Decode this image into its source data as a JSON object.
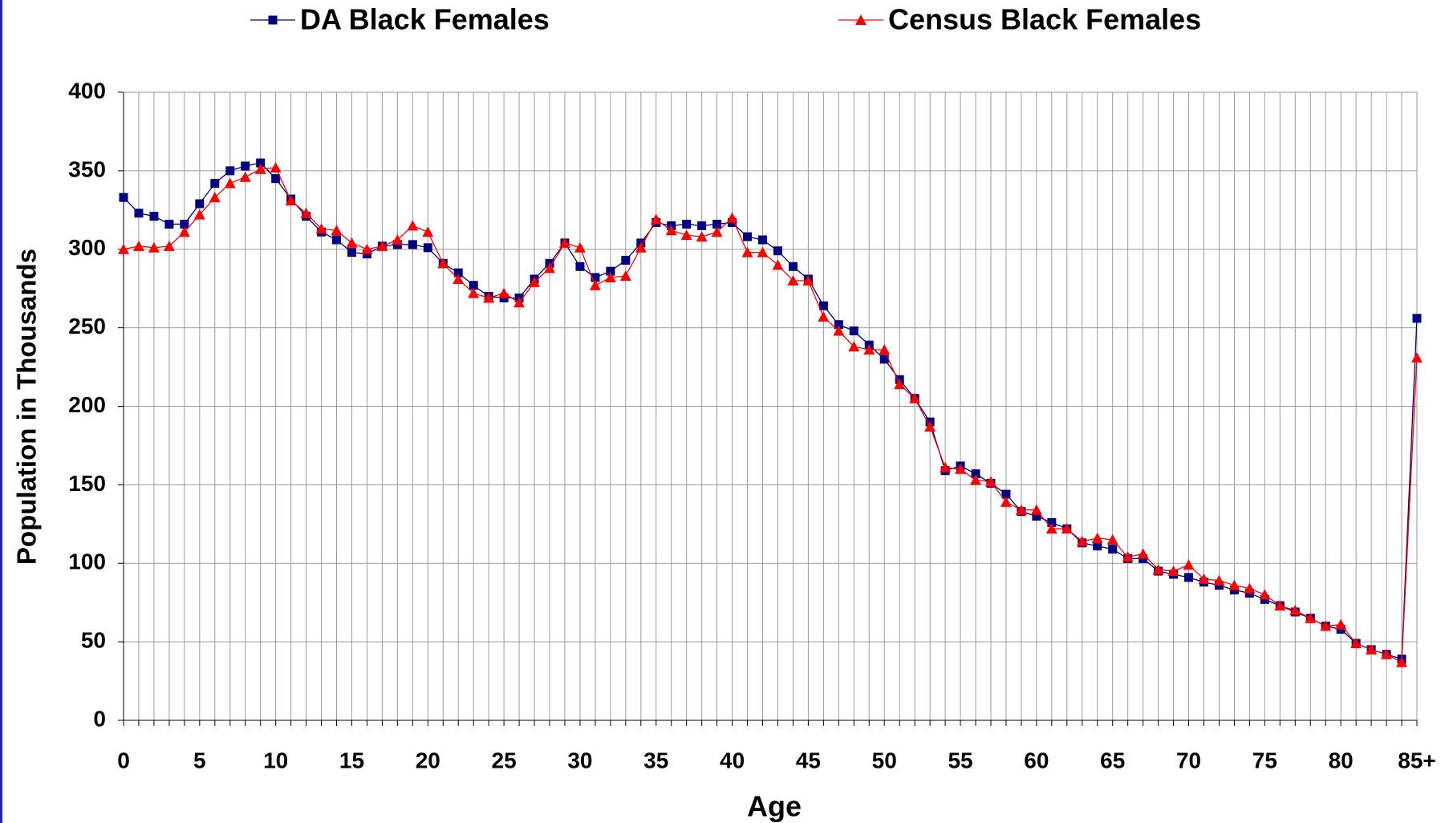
{
  "chart_data": {
    "type": "line",
    "x_label": "Age",
    "y_label": "Population in Thousands",
    "categories": [
      "0",
      null,
      null,
      null,
      null,
      "5",
      null,
      null,
      null,
      null,
      "10",
      null,
      null,
      null,
      null,
      "15",
      null,
      null,
      null,
      null,
      "20",
      null,
      null,
      null,
      null,
      "25",
      null,
      null,
      null,
      null,
      "30",
      null,
      null,
      null,
      null,
      "35",
      null,
      null,
      null,
      null,
      "40",
      null,
      null,
      null,
      null,
      "45",
      null,
      null,
      null,
      null,
      "50",
      null,
      null,
      null,
      null,
      "55",
      null,
      null,
      null,
      null,
      "60",
      null,
      null,
      null,
      null,
      "65",
      null,
      null,
      null,
      null,
      "70",
      null,
      null,
      null,
      null,
      "75",
      null,
      null,
      null,
      null,
      "80",
      null,
      null,
      null,
      null,
      "85+"
    ],
    "series": [
      {
        "name": "DA Black Females",
        "color": "#000080",
        "marker": "square",
        "values": [
          333,
          323,
          321,
          316,
          316,
          329,
          342,
          350,
          353,
          355,
          345,
          332,
          321,
          311,
          306,
          298,
          297,
          302,
          303,
          303,
          301,
          291,
          285,
          277,
          270,
          269,
          269,
          281,
          291,
          304,
          289,
          282,
          286,
          293,
          304,
          317,
          315,
          316,
          315,
          316,
          317,
          308,
          306,
          299,
          289,
          281,
          264,
          252,
          248,
          239,
          230,
          217,
          205,
          190,
          159,
          162,
          157,
          151,
          144,
          133,
          130,
          126,
          122,
          113,
          111,
          109,
          103,
          103,
          95,
          93,
          91,
          88,
          86,
          83,
          81,
          77,
          73,
          69,
          65,
          60,
          58,
          49,
          45,
          42,
          39,
          256
        ]
      },
      {
        "name": "Census Black Females",
        "color": "#ff0000",
        "marker": "triangle",
        "values": [
          300,
          302,
          301,
          302,
          311,
          322,
          333,
          342,
          346,
          351,
          352,
          331,
          323,
          313,
          312,
          304,
          300,
          302,
          306,
          315,
          311,
          291,
          281,
          272,
          269,
          272,
          266,
          279,
          288,
          304,
          301,
          277,
          282,
          283,
          301,
          319,
          312,
          309,
          308,
          311,
          320,
          298,
          298,
          290,
          280,
          280,
          257,
          248,
          238,
          236,
          236,
          214,
          205,
          187,
          161,
          160,
          153,
          152,
          139,
          134,
          134,
          122,
          122,
          114,
          116,
          115,
          104,
          106,
          96,
          95,
          99,
          90,
          89,
          86,
          84,
          80,
          73,
          70,
          65,
          60,
          61,
          49,
          45,
          42,
          37,
          231
        ]
      }
    ],
    "ylim": [
      0,
      400
    ],
    "yticks": [
      0,
      50,
      100,
      150,
      200,
      250,
      300,
      350,
      400
    ],
    "grid": true,
    "legend": "top"
  }
}
